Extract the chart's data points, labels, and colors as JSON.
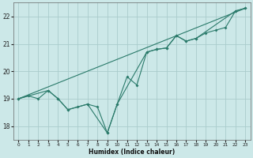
{
  "xlabel": "Humidex (Indice chaleur)",
  "bg_color": "#cce8e8",
  "grid_color": "#aacccc",
  "line_color": "#2a7a6a",
  "series1": [
    [
      0,
      19.0
    ],
    [
      1,
      19.1
    ],
    [
      2,
      19.0
    ],
    [
      3,
      19.3
    ],
    [
      4,
      19.0
    ],
    [
      5,
      18.6
    ],
    [
      6,
      18.7
    ],
    [
      7,
      18.8
    ],
    [
      8,
      18.7
    ],
    [
      9,
      17.75
    ],
    [
      10,
      18.8
    ],
    [
      11,
      19.8
    ],
    [
      12,
      19.5
    ],
    [
      13,
      20.7
    ],
    [
      14,
      20.8
    ],
    [
      15,
      20.85
    ],
    [
      16,
      21.3
    ],
    [
      17,
      21.1
    ],
    [
      18,
      21.2
    ],
    [
      19,
      21.4
    ],
    [
      20,
      21.5
    ],
    [
      21,
      21.6
    ],
    [
      22,
      22.2
    ],
    [
      23,
      22.3
    ]
  ],
  "series2": [
    [
      0,
      19.0
    ],
    [
      23,
      22.3
    ]
  ],
  "series3": [
    [
      0,
      19.0
    ],
    [
      3,
      19.3
    ],
    [
      4,
      19.0
    ],
    [
      5,
      18.6
    ],
    [
      7,
      18.8
    ],
    [
      9,
      17.75
    ],
    [
      10,
      18.8
    ],
    [
      13,
      20.7
    ],
    [
      14,
      20.8
    ],
    [
      15,
      20.85
    ],
    [
      16,
      21.3
    ],
    [
      17,
      21.1
    ],
    [
      18,
      21.2
    ],
    [
      22,
      22.2
    ],
    [
      23,
      22.3
    ]
  ],
  "xlim": [
    -0.5,
    23.5
  ],
  "ylim": [
    17.5,
    22.5
  ],
  "yticks": [
    18,
    19,
    20,
    21,
    22
  ],
  "xticks": [
    0,
    1,
    2,
    3,
    4,
    5,
    6,
    7,
    8,
    9,
    10,
    11,
    12,
    13,
    14,
    15,
    16,
    17,
    18,
    19,
    20,
    21,
    22,
    23
  ]
}
